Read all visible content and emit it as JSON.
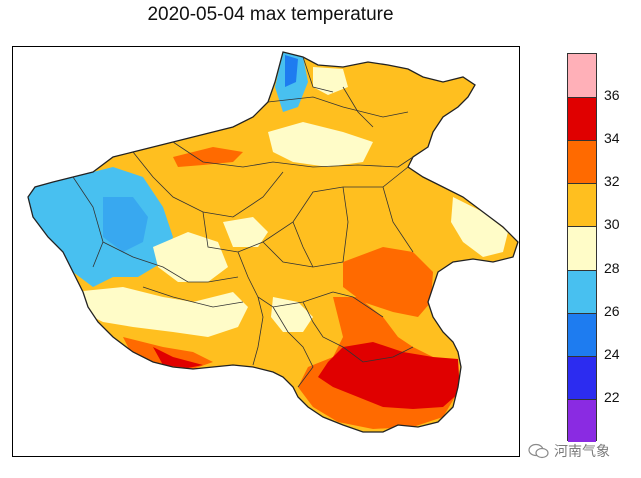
{
  "title": "2020-05-04 max temperature",
  "colorbar": {
    "bins": [
      {
        "label": "",
        "color": "#8a2be2"
      },
      {
        "label": "22",
        "color": "#2c2cf0"
      },
      {
        "label": "24",
        "color": "#1e7cf0"
      },
      {
        "label": "26",
        "color": "#48c0f0"
      },
      {
        "label": "28",
        "color": "#fffcc8"
      },
      {
        "label": "30",
        "color": "#ffbf1f"
      },
      {
        "label": "32",
        "color": "#ff6a00"
      },
      {
        "label": "34",
        "color": "#e00000"
      },
      {
        "label": "36",
        "color": "#ffb0b8"
      }
    ],
    "tick_labels": [
      "22",
      "24",
      "26",
      "28",
      "30",
      "32",
      "34",
      "36"
    ]
  },
  "watermark": {
    "text": "河南气象"
  }
}
